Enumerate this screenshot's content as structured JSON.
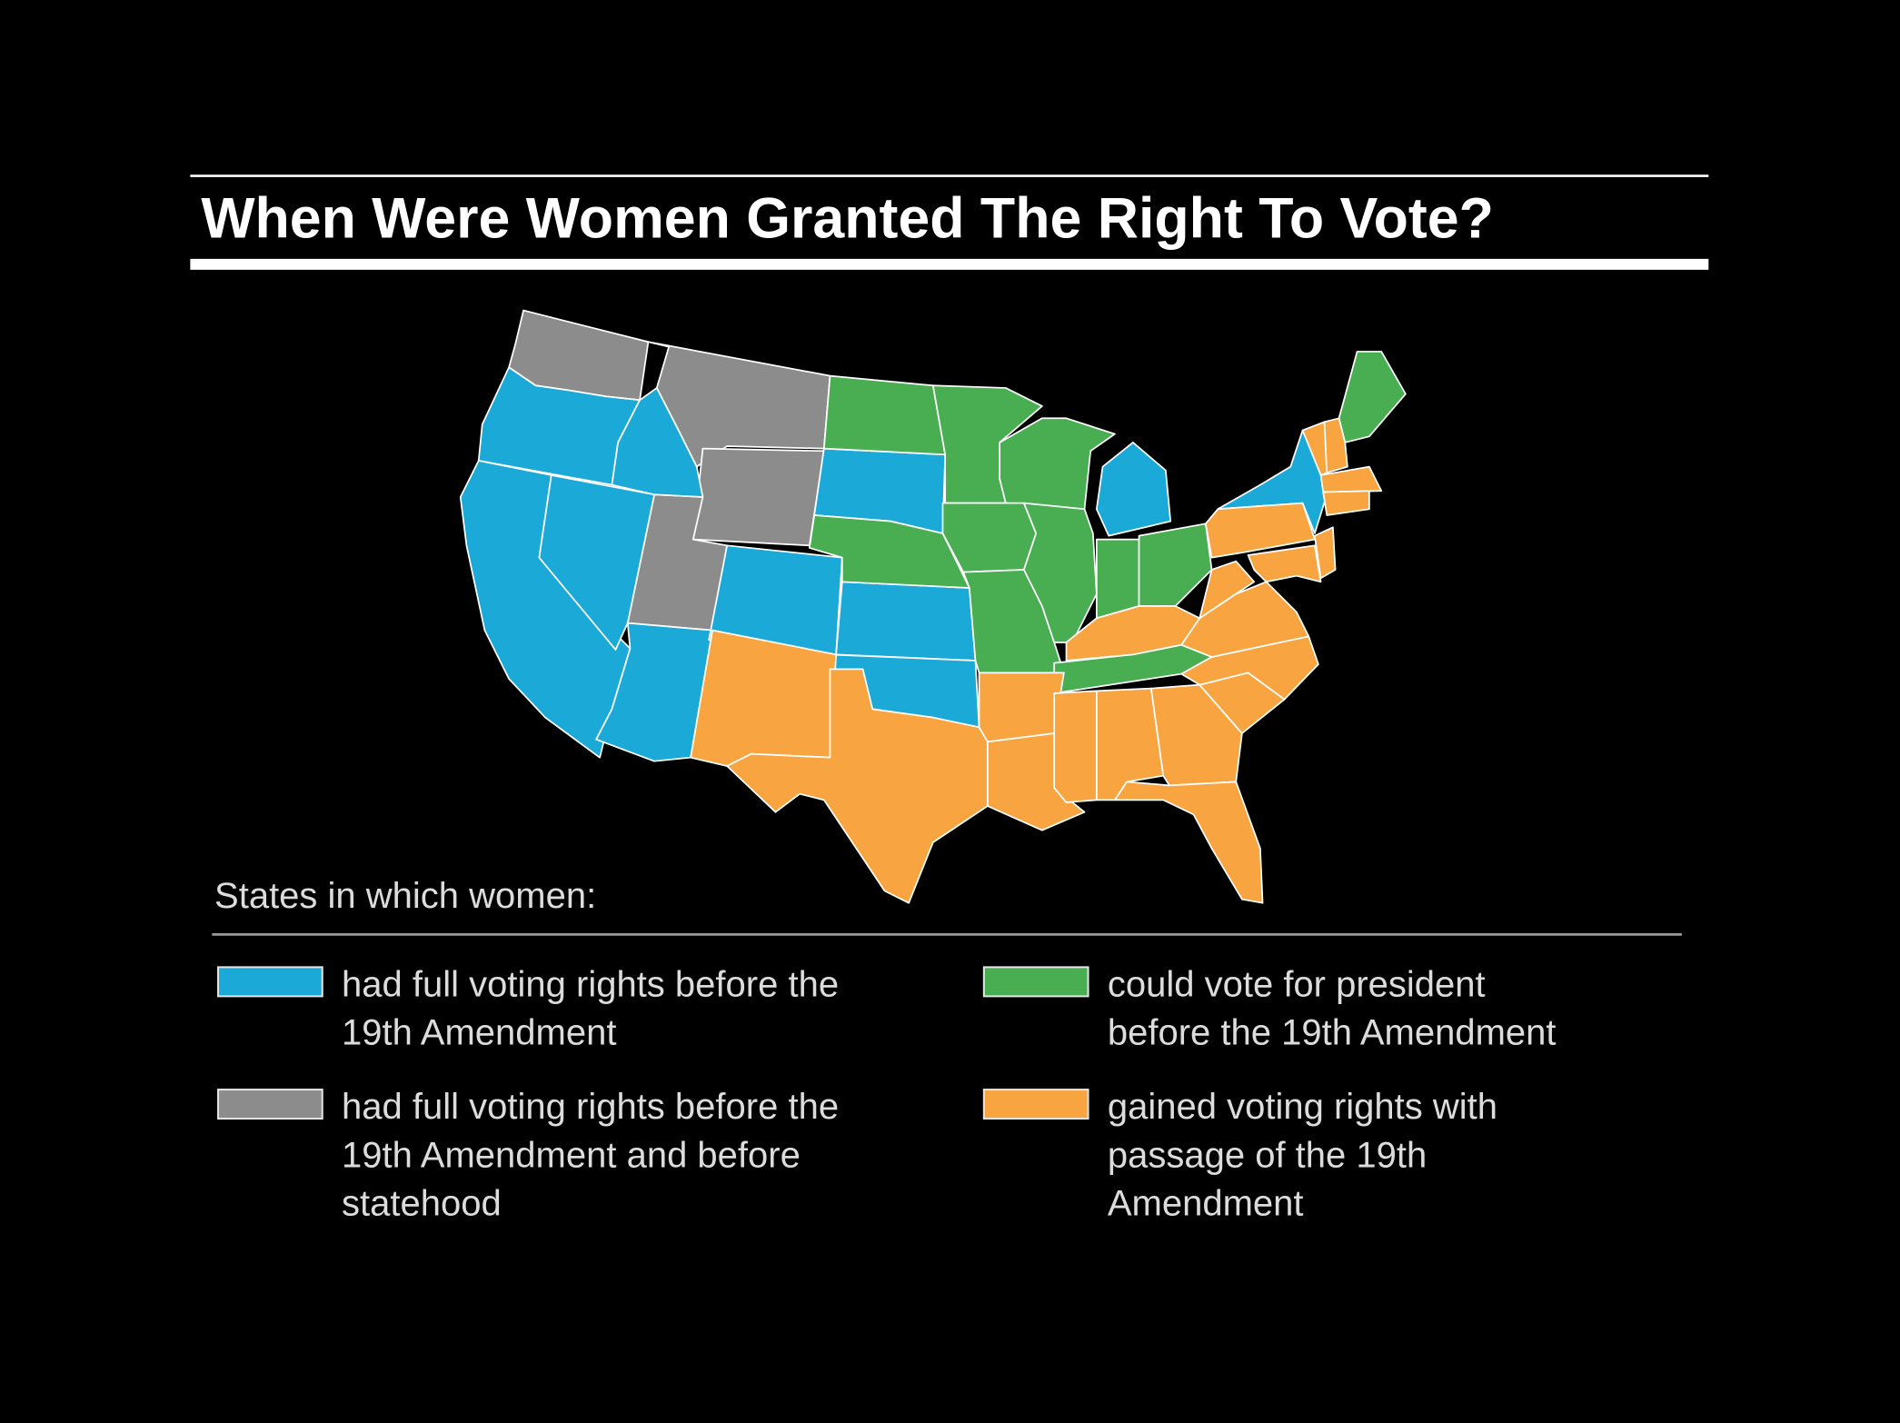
{
  "title": "When Were Women Granted The Right To Vote?",
  "legend": {
    "heading": "States in which women:",
    "items": [
      {
        "color": "#1ba9d7",
        "lines": [
          "had full voting rights before the",
          "19th Amendment"
        ]
      },
      {
        "color": "#8c8c8c",
        "lines": [
          "had full voting rights before the",
          "19th Amendment and before",
          "statehood"
        ]
      },
      {
        "color": "#49ad52",
        "lines": [
          "could vote for president",
          "before the 19th Amendment"
        ]
      },
      {
        "color": "#f8a440",
        "lines": [
          "gained voting rights with",
          "passage of the 19th",
          "Amendment"
        ]
      }
    ]
  }
}
